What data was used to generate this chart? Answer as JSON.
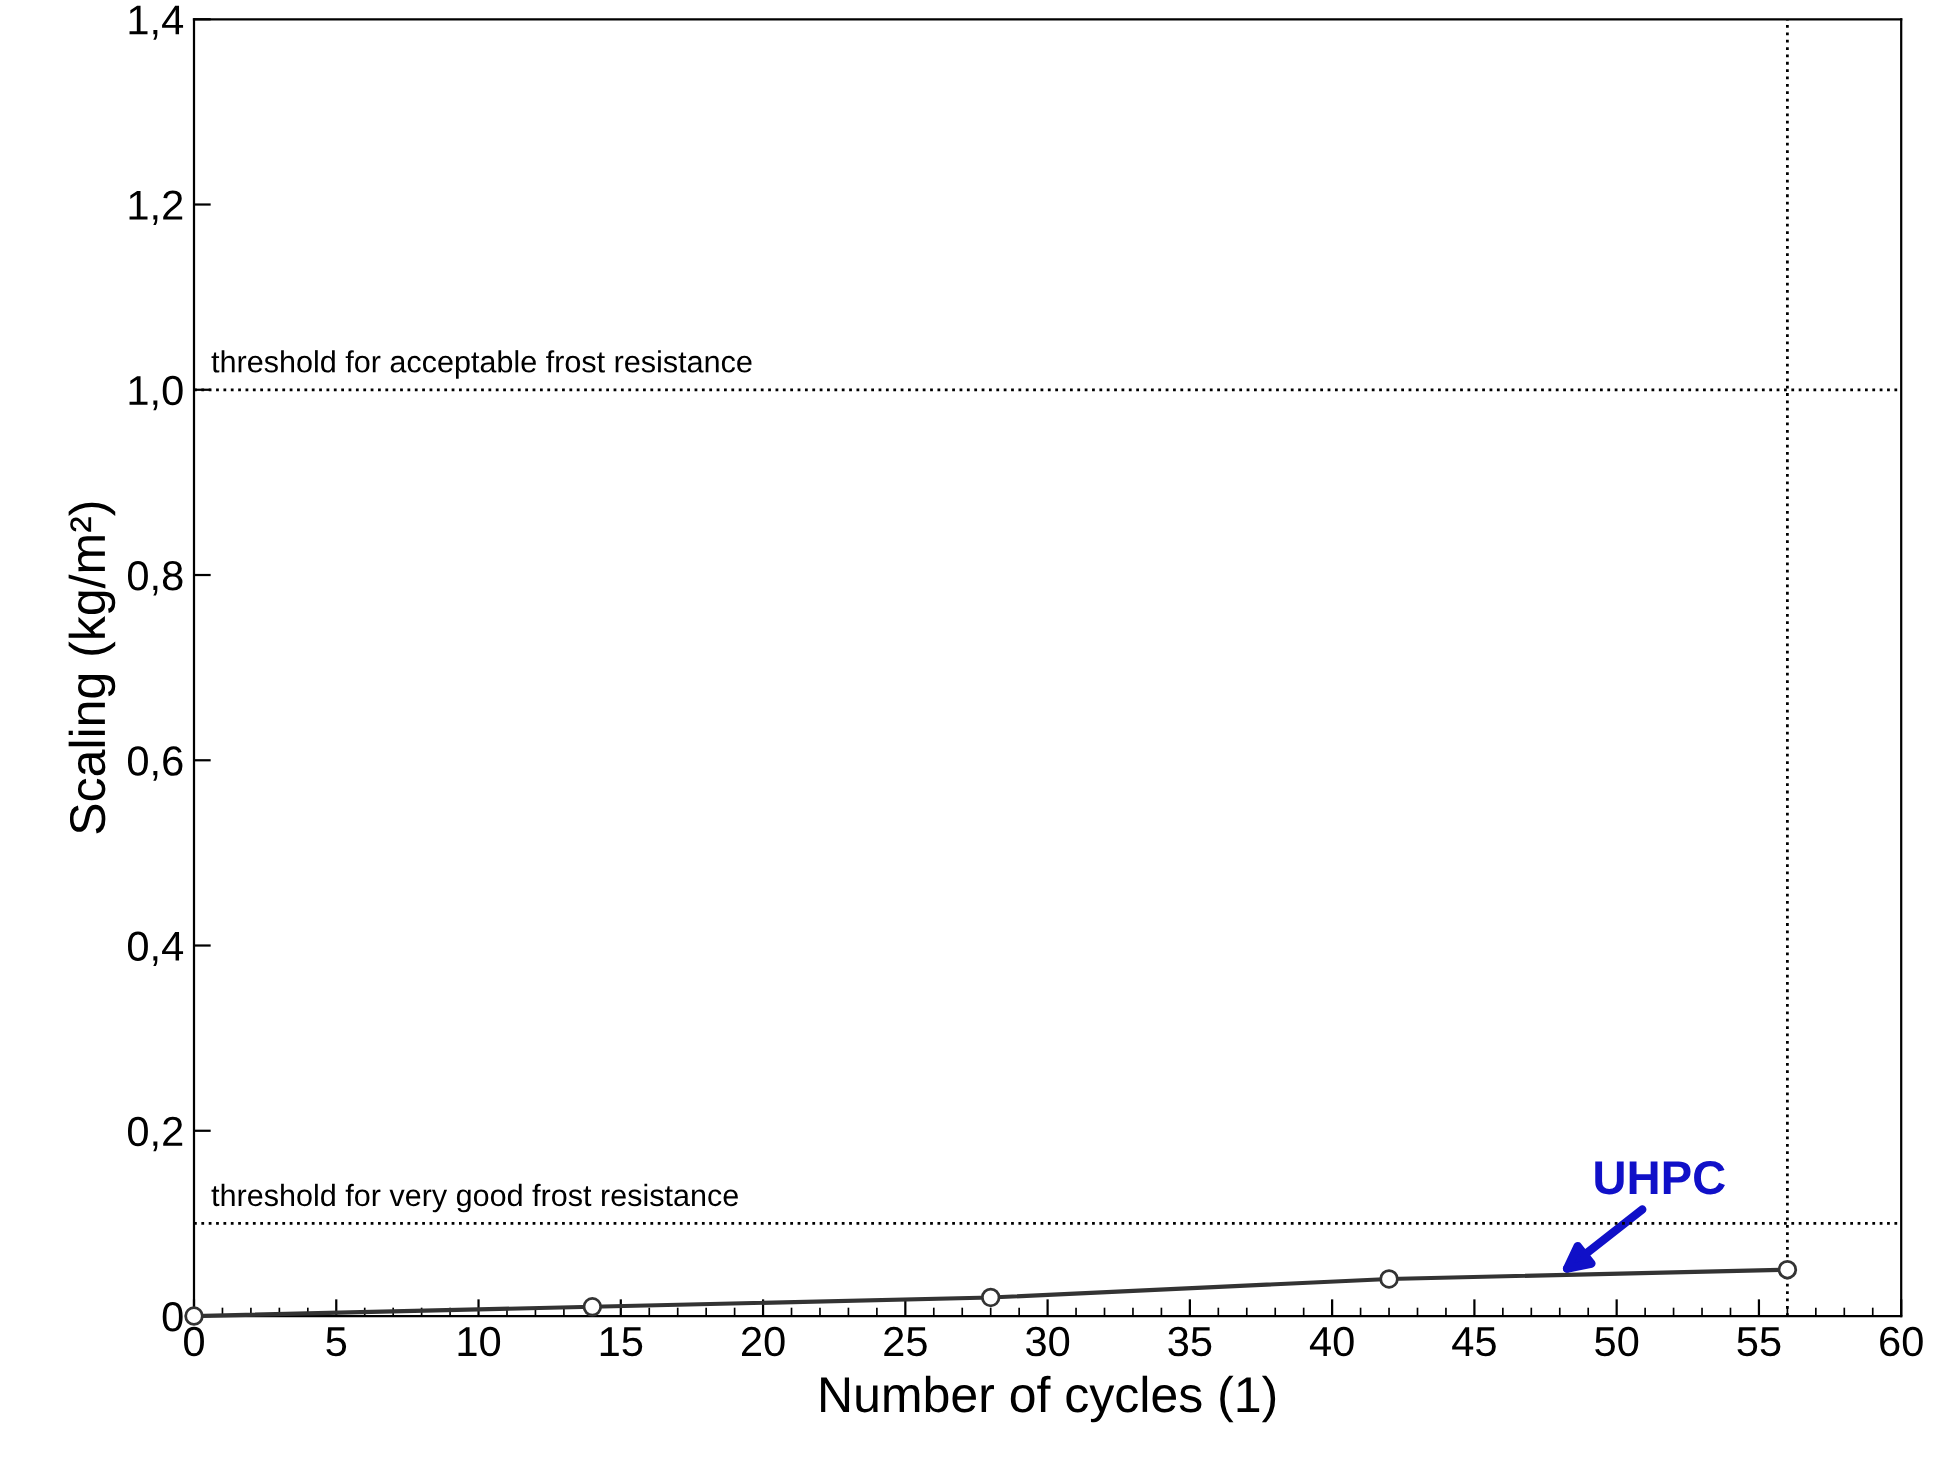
{
  "chart_data": {
    "type": "line",
    "xlabel": "Number of cycles (1)",
    "ylabel": "Scaling (kg/m²)",
    "x": [
      0,
      14,
      28,
      42,
      56
    ],
    "series": [
      {
        "color": "#333333",
        "values": [
          0,
          0.01,
          0.02,
          0.04,
          0.05
        ]
      }
    ],
    "marker": "circle",
    "line_style": "solid",
    "grid": false,
    "legend": false,
    "xlim": [
      0,
      60
    ],
    "xticks": [
      0,
      5,
      10,
      15,
      20,
      25,
      30,
      35,
      40,
      45,
      50,
      55,
      60
    ],
    "ylim": [
      0,
      1.4
    ],
    "yticks": [
      0,
      {
        "value": 0.2,
        "label": "0,2"
      },
      {
        "value": 0.4,
        "label": "0,4"
      },
      {
        "value": 0.6,
        "label": "0,6"
      },
      {
        "value": 0.8,
        "label": "0,8"
      },
      {
        "value": 1.0,
        "label": "1,0"
      },
      {
        "value": 1.2,
        "label": "1,2"
      },
      {
        "value": 1.4,
        "label": "1,4"
      }
    ],
    "ref_lines": [
      {
        "axis": "y",
        "value": 1.0,
        "label": "threshold for acceptable frost resistance",
        "line_style": "dotted",
        "color": "#000000"
      },
      {
        "axis": "y",
        "value": 0.1,
        "label": "threshold for very good frost resistance",
        "line_style": "dotted",
        "color": "#000000"
      },
      {
        "axis": "x",
        "value": 56,
        "label": null,
        "line_style": "dotted",
        "color": "#000000"
      }
    ],
    "annotations": [
      {
        "text": "UHPC",
        "x": 48,
        "y": 0.045
      }
    ]
  }
}
